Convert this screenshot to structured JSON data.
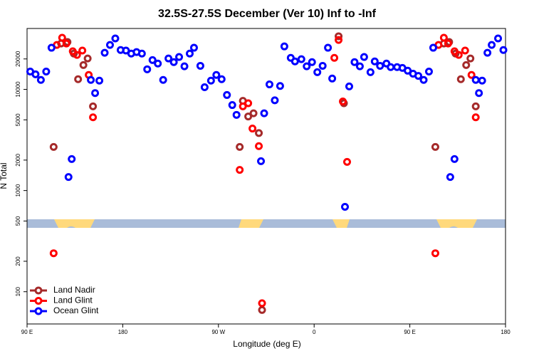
{
  "chart_data": {
    "type": "scatter",
    "title": "32.5S-27.5S December (Ver 10)   Inf to -Inf",
    "x_label": "Longitude (deg E)",
    "y_label": "N Total",
    "log_y": true,
    "legend": "bottom-left",
    "xlim": [
      90,
      540
    ],
    "ylim": [
      48,
      40000
    ],
    "xticks": [
      {
        "value": 90,
        "label": "90 E"
      },
      180,
      {
        "value": 270,
        "label": "90 W"
      },
      {
        "value": 360,
        "label": "0"
      },
      {
        "value": 450,
        "label": "90 E"
      },
      {
        "value": 540,
        "label": "180"
      }
    ],
    "yticks": [
      100,
      200,
      500,
      1000,
      2000,
      5000,
      10000,
      20000
    ],
    "series": [
      {
        "name": "Land Nadir",
        "color": "#a52a2a",
        "x": [
          115,
          122,
          128,
          134,
          138,
          143,
          147,
          152,
          290,
          293,
          298,
          303,
          308,
          311,
          383,
          388,
          474,
          482,
          487,
          493,
          498,
          503,
          507,
          512
        ],
        "values": [
          2700,
          28400,
          29400,
          22600,
          12600,
          17400,
          20200,
          6800,
          2700,
          7700,
          5400,
          5800,
          3700,
          66,
          33500,
          7300,
          2700,
          28400,
          29400,
          22600,
          12600,
          17400,
          20200,
          6800
        ]
      },
      {
        "name": "Land Glint",
        "color": "#ff0000",
        "x": [
          115,
          118,
          123,
          127,
          133,
          137,
          142,
          148,
          152,
          290,
          293,
          298,
          302,
          308,
          311,
          379,
          383,
          387,
          391,
          474,
          477,
          482,
          486,
          492,
          496,
          502,
          508,
          512
        ],
        "values": [
          240,
          27500,
          32400,
          28400,
          23800,
          21900,
          24200,
          13900,
          5300,
          1600,
          6800,
          7300,
          4100,
          2750,
          77,
          20500,
          30800,
          7600,
          1920,
          240,
          27500,
          32400,
          28400,
          23800,
          21900,
          24200,
          13900,
          5300
        ]
      },
      {
        "name": "Ocean Glint",
        "color": "#0000ff",
        "x": [
          93,
          98,
          103,
          108,
          113,
          129,
          132,
          150,
          154,
          158,
          163,
          168,
          173,
          178,
          183,
          188,
          193,
          198,
          203,
          208,
          213,
          218,
          223,
          228,
          233,
          238,
          243,
          247,
          253,
          257,
          263,
          268,
          273,
          278,
          283,
          287,
          310,
          313,
          318,
          323,
          328,
          332,
          338,
          342,
          348,
          353,
          358,
          363,
          368,
          373,
          377,
          389,
          393,
          398,
          403,
          407,
          413,
          417,
          422,
          428,
          432,
          438,
          443,
          448,
          453,
          458,
          463,
          468,
          472,
          488,
          492,
          512,
          515,
          518,
          523,
          527,
          533,
          538
        ],
        "values": [
          15000,
          14100,
          12400,
          15000,
          25800,
          1360,
          2050,
          12400,
          9200,
          12200,
          23000,
          27500,
          31900,
          24500,
          24200,
          22600,
          23400,
          22600,
          15800,
          19500,
          18000,
          12400,
          20200,
          18600,
          20900,
          16900,
          22600,
          25800,
          17100,
          10500,
          12200,
          13900,
          12600,
          8800,
          7000,
          5600,
          1950,
          5800,
          11200,
          7800,
          10800,
          26600,
          20500,
          18900,
          19900,
          16900,
          18600,
          14800,
          17100,
          25800,
          12800,
          690,
          10700,
          18600,
          16900,
          20900,
          14800,
          18900,
          17100,
          18000,
          16600,
          16600,
          16300,
          15300,
          14300,
          13600,
          12400,
          15000,
          25800,
          1360,
          2050,
          12400,
          9200,
          12200,
          23000,
          27500,
          31900,
          24500
        ]
      }
    ]
  }
}
